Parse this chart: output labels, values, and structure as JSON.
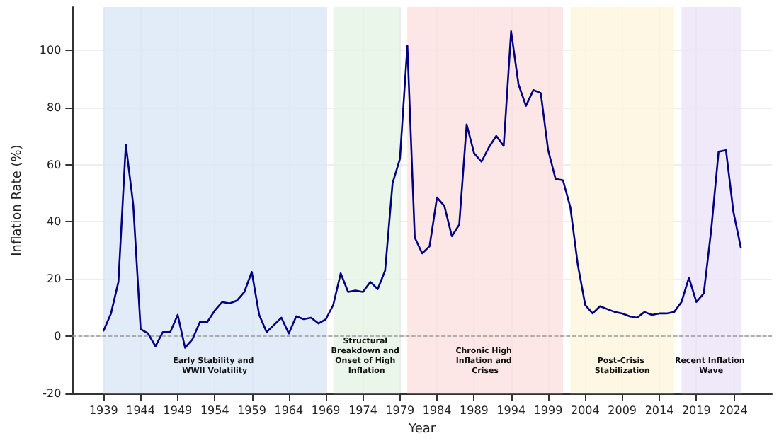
{
  "chart_data": {
    "type": "line",
    "xlabel": "Year",
    "ylabel": "Inflation Rate (%)",
    "x": [
      1939,
      1940,
      1941,
      1942,
      1943,
      1944,
      1945,
      1946,
      1947,
      1948,
      1949,
      1950,
      1951,
      1952,
      1953,
      1954,
      1955,
      1956,
      1957,
      1958,
      1959,
      1960,
      1961,
      1962,
      1963,
      1964,
      1965,
      1966,
      1967,
      1968,
      1969,
      1970,
      1971,
      1972,
      1973,
      1974,
      1975,
      1976,
      1977,
      1978,
      1979,
      1980,
      1981,
      1982,
      1983,
      1984,
      1985,
      1986,
      1987,
      1988,
      1989,
      1990,
      1991,
      1992,
      1993,
      1994,
      1995,
      1996,
      1997,
      1998,
      1999,
      2000,
      2001,
      2002,
      2003,
      2004,
      2005,
      2006,
      2007,
      2008,
      2009,
      2010,
      2011,
      2012,
      2013,
      2014,
      2015,
      2016,
      2017,
      2018,
      2019,
      2020,
      2021,
      2022,
      2023,
      2024,
      2025
    ],
    "series": [
      {
        "color": "#000080",
        "values": [
          2,
          8,
          19,
          67,
          46,
          2.5,
          1,
          -3.5,
          1.5,
          1.5,
          7.5,
          -4,
          -1,
          5,
          5,
          9,
          12,
          11.5,
          12.5,
          15.5,
          22.5,
          7.5,
          1.5,
          4,
          6.5,
          1,
          7,
          6,
          6.5,
          4.5,
          6,
          11,
          22,
          15.5,
          16,
          15.5,
          19,
          16.5,
          23,
          53.5,
          62,
          101.5,
          34.5,
          29,
          31.5,
          48.5,
          45.5,
          35,
          39,
          74,
          64,
          61,
          66,
          70,
          66.5,
          106.5,
          88,
          80.5,
          86,
          85,
          65,
          55,
          54.5,
          45,
          25,
          11,
          8,
          10.5,
          9.5,
          8.5,
          8,
          7,
          6.5,
          8.5,
          7.5,
          8,
          8,
          8.5,
          12,
          20.5,
          12,
          15,
          37,
          64.5,
          65,
          43.5,
          31
        ]
      }
    ],
    "xlim": [
      1934.8,
      2029.2
    ],
    "ylim": [
      -20,
      115
    ],
    "xticks": [
      1939,
      1944,
      1949,
      1954,
      1959,
      1964,
      1969,
      1974,
      1979,
      1984,
      1989,
      1994,
      1999,
      2004,
      2009,
      2014,
      2019,
      2024
    ],
    "yticks": [
      -20,
      0,
      20,
      40,
      60,
      80,
      100
    ],
    "bands": [
      {
        "axis": "x",
        "from": 1939,
        "to": 1969,
        "label": "Early Stability and WWII Volatility",
        "color": "#dbe7f7"
      },
      {
        "axis": "x",
        "from": 1970,
        "to": 1979,
        "label": "Structural Breakdown and Onset of High Inflation",
        "color": "#e3f4e3"
      },
      {
        "axis": "x",
        "from": 1980,
        "to": 2001,
        "label": "Chronic High Inflation and Crises",
        "color": "#fde0e0"
      },
      {
        "axis": "x",
        "from": 2002,
        "to": 2016,
        "label": "Post-Crisis Stabilization",
        "color": "#fdf5dc"
      },
      {
        "axis": "x",
        "from": 2017,
        "to": 2025,
        "label": "Recent Inflation Wave",
        "color": "#ece3f8"
      }
    ],
    "ref_lines": [
      {
        "axis": "y",
        "value": 0,
        "color": "#999999",
        "line_style": "dashed"
      }
    ],
    "grid": true,
    "line_style": "solid",
    "marker": "none"
  }
}
